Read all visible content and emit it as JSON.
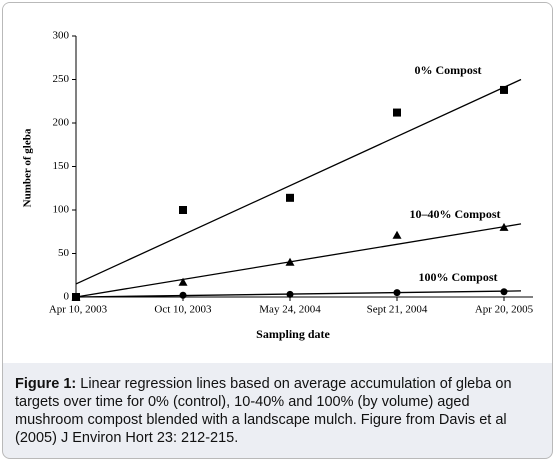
{
  "chart_data": {
    "type": "scatter",
    "y_label": "Number of gleba",
    "x_label": "Sampling date",
    "categories": [
      "Apr 10, 2003",
      "Oct 10, 2003",
      "May 24, 2004",
      "Sept 21, 2004",
      "Apr 20, 2005"
    ],
    "ylim": [
      0,
      300
    ],
    "yticks": [
      0,
      50,
      100,
      150,
      200,
      250,
      300
    ],
    "series": [
      {
        "name": "0% Compost",
        "color": "#000000",
        "marker": "square",
        "values": [
          0,
          100,
          114,
          212,
          238
        ],
        "trend": [
          15,
          250
        ]
      },
      {
        "name": "10–40% Compost",
        "color": "#000000",
        "marker": "triangle",
        "values": [
          0,
          17,
          40,
          71,
          80
        ],
        "trend": [
          0,
          84
        ]
      },
      {
        "name": "100% Compost",
        "color": "#000000",
        "marker": "circle",
        "values": [
          0,
          2,
          3,
          5,
          6
        ],
        "trend": [
          0,
          7
        ]
      }
    ]
  },
  "caption": {
    "label": "Figure 1:",
    "text": " Linear regression lines based on average accumulation of gleba on targets over time for 0% (control), 10-40% and 100% (by volume) aged mushroom compost blended with a landscape mulch. Figure from Davis et al (2005) J Environ Hort 23: 212-215."
  }
}
